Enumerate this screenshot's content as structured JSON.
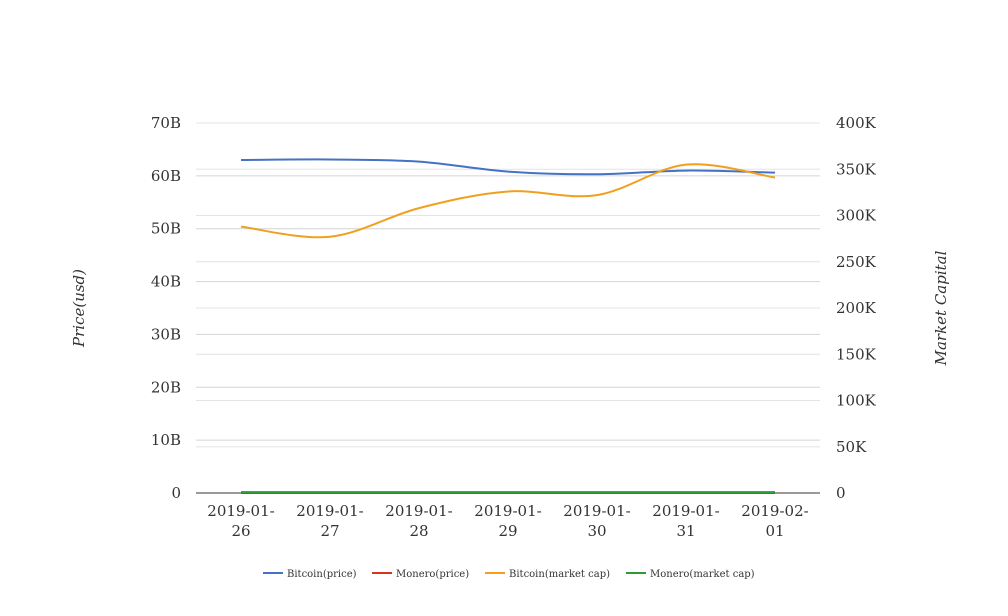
{
  "chart_data": {
    "type": "line",
    "x": [
      "2019-01-26",
      "2019-01-27",
      "2019-01-28",
      "2019-01-29",
      "2019-01-30",
      "2019-01-31",
      "2019-02-01"
    ],
    "x_tick_labels": [
      [
        "2019-01-",
        "26"
      ],
      [
        "2019-01-",
        "27"
      ],
      [
        "2019-01-",
        "28"
      ],
      [
        "2019-01-",
        "29"
      ],
      [
        "2019-01-",
        "30"
      ],
      [
        "2019-01-",
        "31"
      ],
      [
        "2019-02-",
        "01"
      ]
    ],
    "ylabel": "Price(usd)",
    "ylabel_right": "Market Capital",
    "ylim": [
      0,
      70000000000
    ],
    "ylim_right": [
      0,
      400000
    ],
    "y_ticks": [
      0,
      10000000000,
      20000000000,
      30000000000,
      40000000000,
      50000000000,
      60000000000,
      70000000000
    ],
    "y_tick_labels": [
      "0",
      "10B",
      "20B",
      "30B",
      "40B",
      "50B",
      "60B",
      "70B"
    ],
    "y_ticks_right": [
      0,
      50000,
      100000,
      150000,
      200000,
      250000,
      300000,
      350000,
      400000
    ],
    "y_tick_labels_right": [
      "0",
      "50K",
      "100K",
      "150K",
      "200K",
      "250K",
      "300K",
      "350K",
      "400K"
    ],
    "grid": true,
    "legend_position": "bottom",
    "series": [
      {
        "name": "Bitcoin(price)",
        "axis": "left",
        "color": "#4472c4",
        "values": [
          63000000000,
          63100000000,
          62700000000,
          60800000000,
          60300000000,
          61000000000,
          60600000000
        ]
      },
      {
        "name": "Monero(price)",
        "axis": "right",
        "color": "#d9331f",
        "values": [
          60,
          60,
          60,
          60,
          60,
          60,
          60
        ]
      },
      {
        "name": "Bitcoin(market cap)",
        "axis": "right",
        "color": "#f0a01e",
        "values": [
          288000,
          277000,
          308000,
          326000,
          322000,
          355000,
          341000
        ]
      },
      {
        "name": "Monero(market cap)",
        "axis": "right",
        "color": "#2e9a33",
        "values": [
          900,
          900,
          900,
          900,
          900,
          900,
          900
        ]
      }
    ]
  }
}
